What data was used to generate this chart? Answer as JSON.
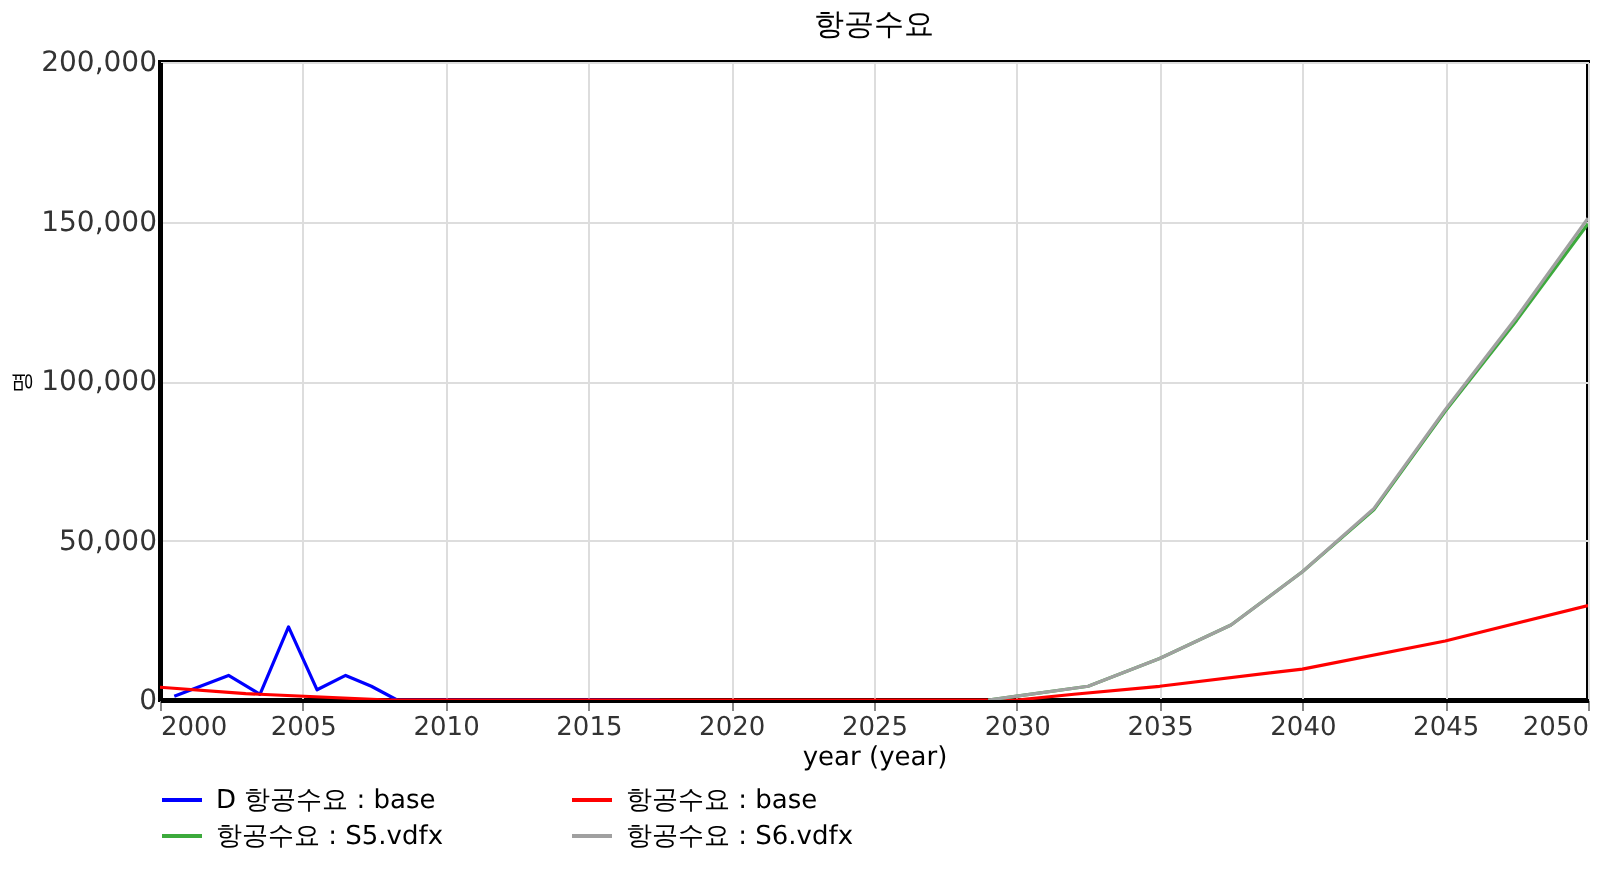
{
  "chart_data": {
    "type": "line",
    "title": "항공수요",
    "xlabel": "year (year)",
    "ylabel": "명",
    "xlim": [
      2000,
      2050
    ],
    "xticks": [
      2000,
      2005,
      2010,
      2015,
      2020,
      2025,
      2030,
      2035,
      2040,
      2045,
      2050
    ],
    "ylim": [
      0,
      200000
    ],
    "yticks": [
      {
        "value": 0,
        "label": "0"
      },
      {
        "value": 50000,
        "label": "50,000"
      },
      {
        "value": 100000,
        "label": "100,000"
      },
      {
        "value": 150000,
        "label": "150,000"
      },
      {
        "value": 200000,
        "label": "200,000"
      }
    ],
    "grid": true,
    "legend": "bottom",
    "marker": "none",
    "line_style": "solid",
    "series": [
      {
        "name": "D 항공수요 : base",
        "color": "#0000ff",
        "x": [
          2000.5,
          2002.4,
          2003.5,
          2004.5,
          2005.5,
          2006.5,
          2007.4,
          2008.3,
          2017.5
        ],
        "values": [
          1200,
          7700,
          1800,
          22900,
          3200,
          7700,
          4300,
          0,
          0
        ]
      },
      {
        "name": "항공수요 : base",
        "color": "#ff0000",
        "x": [
          2000,
          2003,
          2008,
          2030,
          2032,
          2035,
          2040,
          2045,
          2050
        ],
        "values": [
          4000,
          2000,
          0,
          0,
          1800,
          4300,
          9700,
          18500,
          29600
        ]
      },
      {
        "name": "항공수요 : S5.vdfx",
        "color": "#3caa3c",
        "x": [
          2029,
          2030,
          2032.5,
          2035,
          2037.5,
          2040,
          2042.5,
          2045,
          2047.5,
          2050
        ],
        "values": [
          0,
          1200,
          4300,
          13000,
          23500,
          40200,
          59600,
          90500,
          119000,
          149300
        ]
      },
      {
        "name": "항공수요 : S6.vdfx",
        "color": "#a0a0a0",
        "x": [
          2029,
          2030,
          2032.5,
          2035,
          2037.5,
          2040,
          2042.5,
          2045,
          2047.5,
          2050
        ],
        "values": [
          0,
          1200,
          4300,
          13000,
          23500,
          40200,
          60000,
          91000,
          120000,
          151000
        ]
      }
    ]
  }
}
